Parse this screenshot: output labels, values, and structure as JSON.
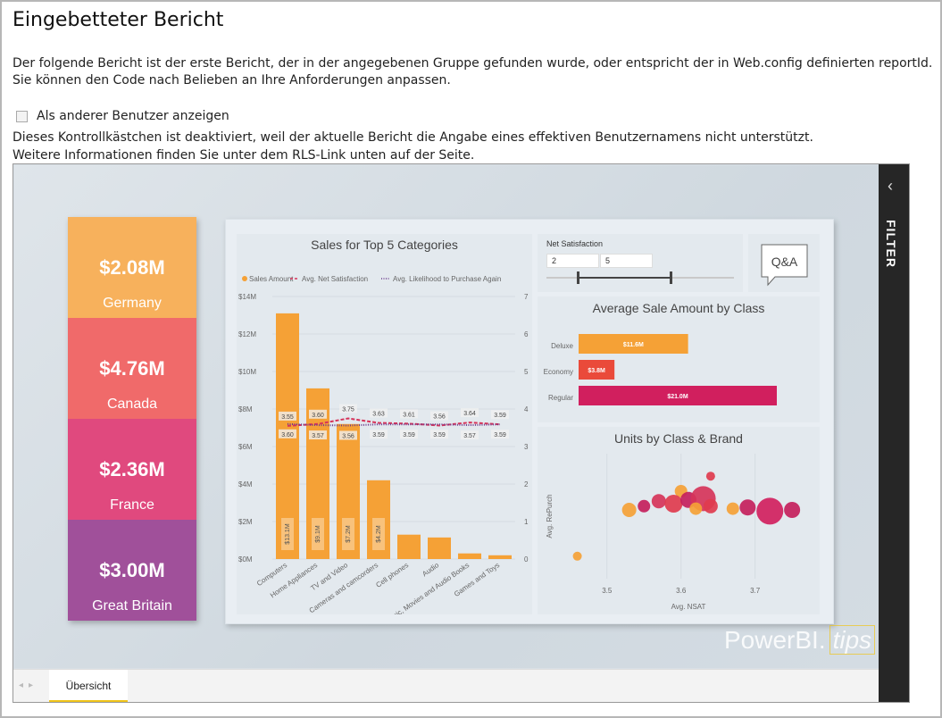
{
  "page": {
    "title": "Eingebetteter Bericht",
    "description_1": "Der folgende Bericht ist der erste Bericht, der in der angegebenen Gruppe gefunden wurde, oder entspricht der in Web.config definierten reportId.",
    "description_2": "Sie können den Code nach Belieben an Ihre Anforderungen anpassen.",
    "checkbox_label": "Als anderer Benutzer anzeigen",
    "checkbox_checked": false,
    "note_1": "Dieses Kontrollkästchen ist deaktiviert, weil der aktuelle Bericht die Angabe eines effektiven Benutzernamens nicht unterstützt.",
    "note_2": "Weitere Informationen finden Sie unter dem RLS-Link unten auf der Seite."
  },
  "report": {
    "filter_label": "FILTER",
    "tab_label": "Übersicht",
    "watermark_main": "PowerBI.",
    "watermark_tips": "tips",
    "kpis": [
      {
        "value": "$2.08M",
        "label": "Germany",
        "color": "#f7b15c"
      },
      {
        "value": "$4.76M",
        "label": "Canada",
        "color": "#f06a6a"
      },
      {
        "value": "$2.36M",
        "label": "France",
        "color": "#e0497e"
      },
      {
        "value": "$3.00M",
        "label": "Great Britain",
        "color": "#a0509a"
      }
    ],
    "slicer": {
      "title": "Net Satisfaction",
      "min": "2",
      "max": "5"
    },
    "qa_label": "Q&A"
  },
  "chart_data": [
    {
      "type": "bar",
      "title": "Sales for Top 5 Categories",
      "legend": [
        "Sales Amount",
        "Avg. Net Satisfaction",
        "Avg. Likelihood to Purchase Again"
      ],
      "categories": [
        "Computers",
        "Home Appliances",
        "TV and Video",
        "Cameras and camcorders",
        "Cell phones",
        "Audio",
        "Music, Movies and Audio Books",
        "Games and Toys"
      ],
      "series": [
        {
          "name": "Sales Amount",
          "values": [
            13.1,
            9.1,
            7.2,
            4.2,
            1.3,
            1.15,
            0.3,
            0.2
          ]
        },
        {
          "name": "Avg. Net Satisfaction",
          "values": [
            3.55,
            3.6,
            3.75,
            3.63,
            3.61,
            3.56,
            3.64,
            3.59
          ]
        },
        {
          "name": "Avg. Likelihood to Purchase Again",
          "values": [
            3.6,
            3.57,
            3.56,
            3.59,
            3.59,
            3.59,
            3.57,
            3.59
          ]
        }
      ],
      "bar_labels": [
        "$13.1M",
        "$9.1M",
        "$7.2M",
        "$4.2M"
      ],
      "y_ticks": [
        "$14M",
        "$12M",
        "$10M",
        "$8M",
        "$6M",
        "$4M",
        "$2M",
        "$0M"
      ],
      "y2_ticks": [
        "7",
        "6",
        "5",
        "4",
        "3",
        "2",
        "1",
        "0"
      ],
      "ylim": [
        0,
        14
      ],
      "y2lim": [
        0,
        7
      ],
      "colors": {
        "bar": "#f5a136",
        "net": "#d6345a",
        "likelihood": "#6b3a8c"
      }
    },
    {
      "type": "bar",
      "title": "Average Sale Amount by Class",
      "categories": [
        "Deluxe",
        "Economy",
        "Regular"
      ],
      "values": [
        11.6,
        3.8,
        21.0
      ],
      "labels": [
        "$11.6M",
        "$3.8M",
        "$21.0M"
      ],
      "colors": [
        "#f5a136",
        "#ea4a3a",
        "#d11f5e"
      ]
    },
    {
      "type": "scatter",
      "title": "Units by Class & Brand",
      "xlabel": "Avg. NSAT",
      "ylabel": "Avg. RePurch",
      "x_ticks": [
        "3.5",
        "3.6",
        "3.7"
      ],
      "xlim": [
        3.44,
        3.78
      ],
      "points": [
        {
          "x": 3.64,
          "y": 0.82,
          "r": 5,
          "c": "#e03b4e"
        },
        {
          "x": 3.6,
          "y": 0.7,
          "r": 7,
          "c": "#f5a136"
        },
        {
          "x": 3.53,
          "y": 0.55,
          "r": 8,
          "c": "#f5a136"
        },
        {
          "x": 3.55,
          "y": 0.58,
          "r": 7,
          "c": "#c4205c"
        },
        {
          "x": 3.57,
          "y": 0.62,
          "r": 8,
          "c": "#d6345a"
        },
        {
          "x": 3.59,
          "y": 0.6,
          "r": 10,
          "c": "#e03b4e"
        },
        {
          "x": 3.61,
          "y": 0.63,
          "r": 9,
          "c": "#c4205c"
        },
        {
          "x": 3.63,
          "y": 0.64,
          "r": 14,
          "c": "#d6345a"
        },
        {
          "x": 3.62,
          "y": 0.56,
          "r": 7,
          "c": "#f5a136"
        },
        {
          "x": 3.64,
          "y": 0.58,
          "r": 8,
          "c": "#e03b4e"
        },
        {
          "x": 3.67,
          "y": 0.56,
          "r": 7,
          "c": "#f5a136"
        },
        {
          "x": 3.69,
          "y": 0.57,
          "r": 9,
          "c": "#c4205c"
        },
        {
          "x": 3.72,
          "y": 0.54,
          "r": 15,
          "c": "#d11f5e"
        },
        {
          "x": 3.75,
          "y": 0.55,
          "r": 9,
          "c": "#c4205c"
        },
        {
          "x": 3.46,
          "y": 0.18,
          "r": 5,
          "c": "#f5a136"
        }
      ]
    }
  ]
}
